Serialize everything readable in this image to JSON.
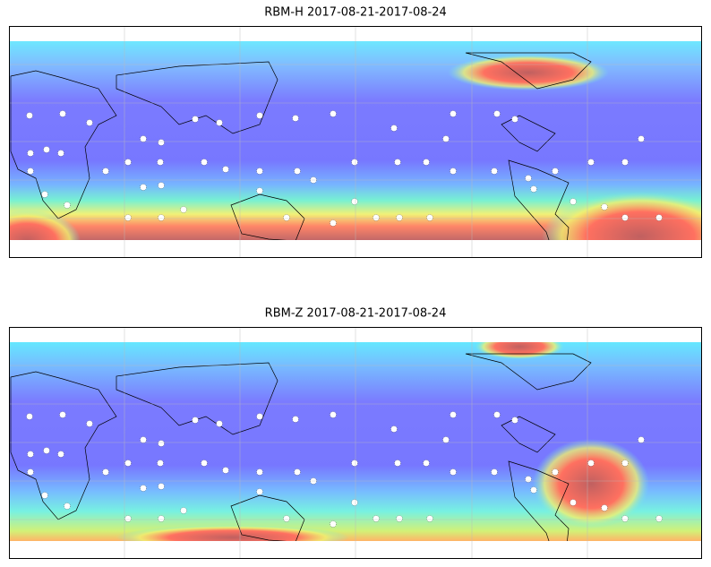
{
  "maps": [
    {
      "title": "RBM-H 2017-08-21-2017-08-24"
    },
    {
      "title": "RBM-Z 2017-08-21-2017-08-24"
    }
  ]
}
